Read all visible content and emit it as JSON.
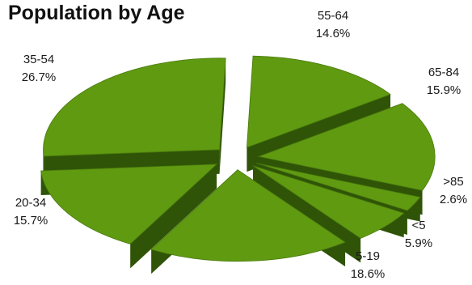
{
  "chart_data": {
    "type": "pie",
    "title": "Population by Age",
    "style": "3d-exploded",
    "slices": [
      {
        "label": "55-64",
        "value": 14.6,
        "display": "14.6%"
      },
      {
        "label": "65-84",
        "value": 15.9,
        "display": "15.9%"
      },
      {
        "label": ">85",
        "value": 2.6,
        "display": "2.6%"
      },
      {
        "label": "<5",
        "value": 5.9,
        "display": "5.9%"
      },
      {
        "label": "5-19",
        "value": 18.6,
        "display": "18.6%"
      },
      {
        "label": "20-34",
        "value": 15.7,
        "display": "15.7%"
      },
      {
        "label": "35-54",
        "value": 26.7,
        "display": "26.7%"
      }
    ],
    "colors": {
      "top": "#5f9a11",
      "side": "#2f5407",
      "edge": "#4a7a0d"
    }
  }
}
